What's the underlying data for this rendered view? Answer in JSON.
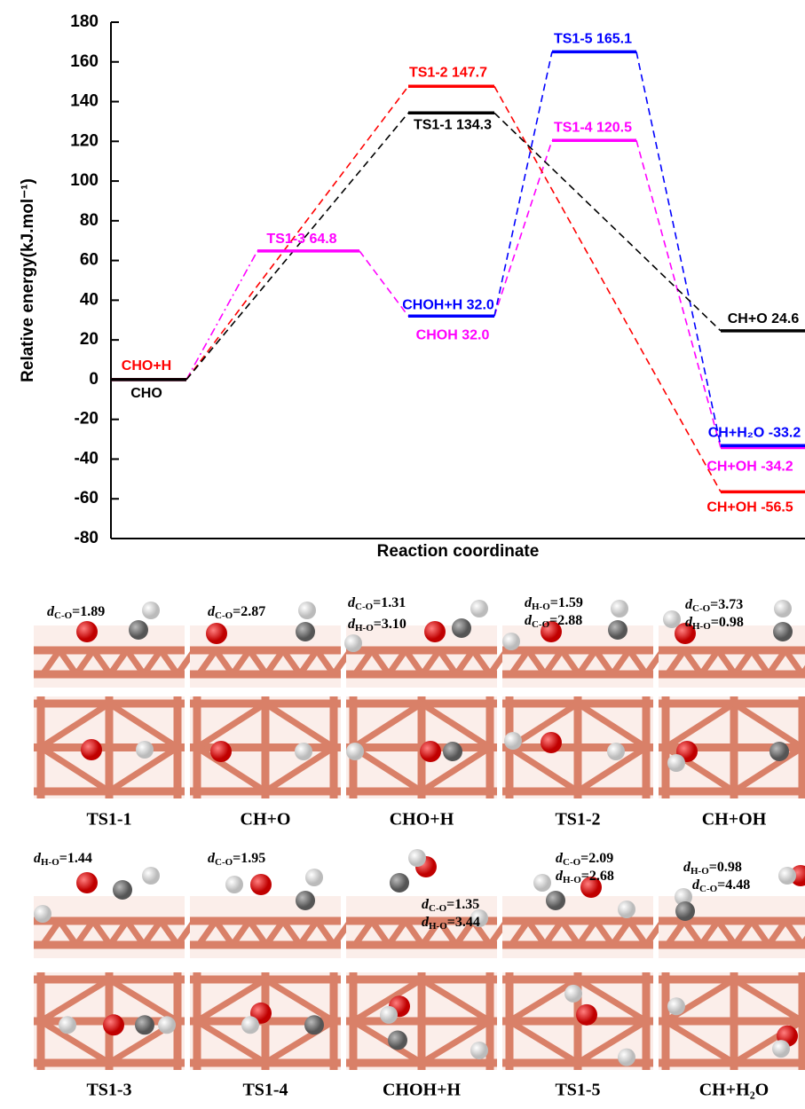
{
  "chart_data": {
    "type": "energy_profile",
    "y_label": "Relative energy(kJ.mol⁻¹)",
    "x_label": "Reaction coordinate",
    "categories": [
      null,
      null,
      null,
      null,
      null
    ],
    "ylim": [
      -80,
      180
    ],
    "yticks": [
      -80,
      -60,
      -40,
      -20,
      0,
      20,
      40,
      60,
      80,
      100,
      120,
      140,
      160,
      180
    ],
    "series": [
      {
        "color": "#000000",
        "values": [
          0,
          null,
          134.3,
          null,
          24.6
        ],
        "labels": [
          "CHO",
          null,
          "TS1-1 134.3",
          null,
          "CH+O 24.6"
        ]
      },
      {
        "color": "#ff0000",
        "values": [
          0,
          null,
          147.7,
          null,
          -56.5
        ],
        "labels": [
          "CHO+H",
          null,
          "TS1-2 147.7",
          null,
          "CH+OH -56.5"
        ]
      },
      {
        "color": "#ff00ff",
        "values": [
          0,
          64.8,
          32.0,
          120.5,
          -34.2
        ],
        "labels": [
          null,
          "TS1-3 64.8",
          "CHOH 32.0",
          "TS1-4 120.5",
          "CH+OH -34.2"
        ]
      },
      {
        "color": "#0000ff",
        "values": [
          null,
          null,
          32.0,
          165.1,
          -33.2
        ],
        "labels": [
          null,
          null,
          "CHOH+H 32.0",
          "TS1-5 165.1",
          "CH+H₂O -33.2"
        ]
      }
    ]
  },
  "structures": [
    {
      "caption": "TS1-1",
      "distances": [
        [
          "d",
          "C-O",
          "=1.89"
        ]
      ]
    },
    {
      "caption": "CH+O",
      "distances": [
        [
          "d",
          "C-O",
          "=2.87"
        ]
      ]
    },
    {
      "caption": "CHO+H",
      "distances": [
        [
          "d",
          "C-O",
          "=1.31"
        ],
        [
          "d",
          "H-O",
          "=3.10"
        ]
      ]
    },
    {
      "caption": "TS1-2",
      "distances": [
        [
          "d",
          "H-O",
          "=1.59"
        ],
        [
          "d",
          "C-O",
          "=2.88"
        ]
      ]
    },
    {
      "caption": "CH+OH",
      "distances": [
        [
          "d",
          "C-O",
          "=3.73"
        ],
        [
          "d",
          "H-O",
          "=0.98"
        ]
      ]
    },
    {
      "caption": "TS1-3",
      "distances": [
        [
          "d",
          "H-O",
          "=1.44"
        ]
      ]
    },
    {
      "caption": "TS1-4",
      "distances": [
        [
          "d",
          "C-O",
          "=1.95"
        ]
      ]
    },
    {
      "caption": "CHOH+H",
      "distances": [
        [
          "d",
          "C-O",
          "=1.35"
        ],
        [
          "d",
          "H-O",
          "=3.44"
        ]
      ]
    },
    {
      "caption": "TS1-5",
      "distances": [
        [
          "d",
          "C-O",
          "=2.09"
        ],
        [
          "d",
          "H-O",
          "=2.68"
        ]
      ]
    },
    {
      "caption": "CH+H₂O",
      "distances": [
        [
          "d",
          "H-O",
          "=0.98"
        ],
        [
          "d",
          "C-O",
          "=4.48"
        ]
      ]
    }
  ]
}
